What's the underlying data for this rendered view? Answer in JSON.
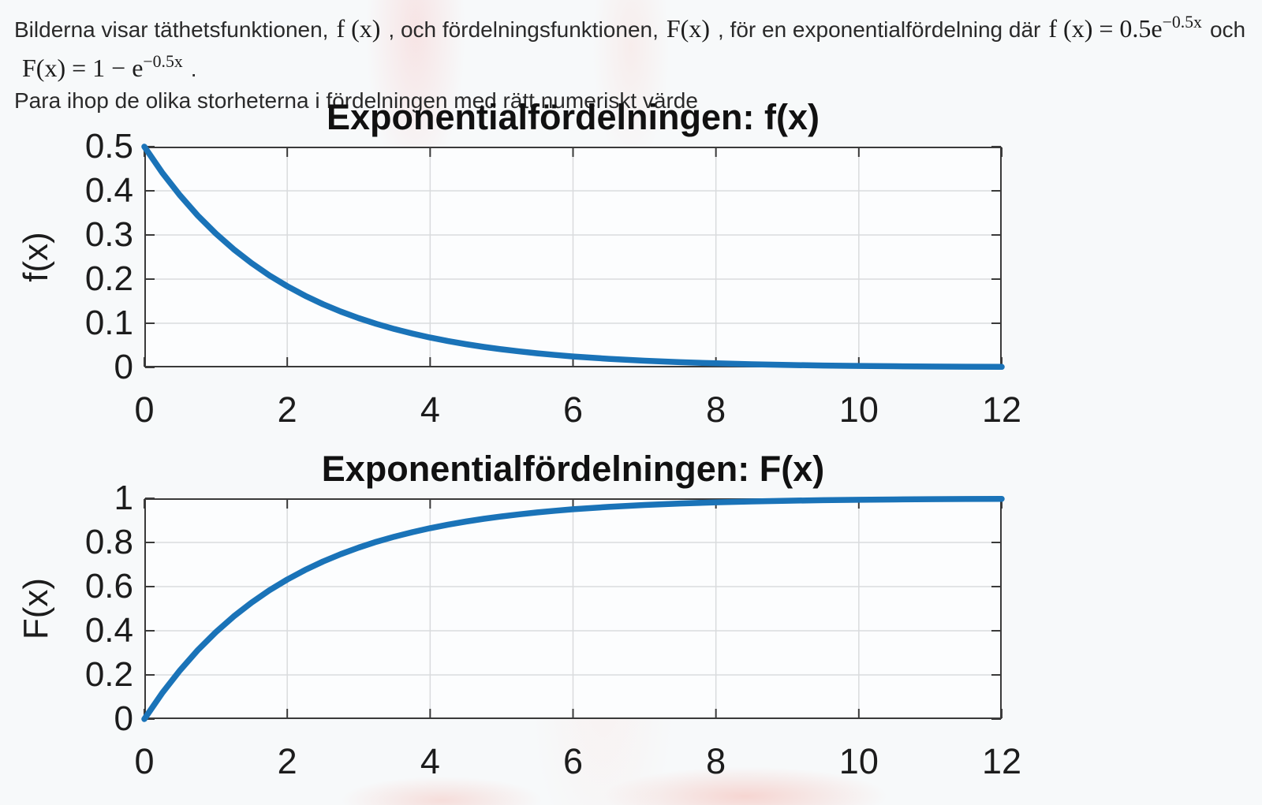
{
  "colors": {
    "line_blue": "#1a73b8",
    "grid": "#d9dbdd",
    "axis": "#3a3a3a",
    "plot_bg": "#fcfdfe",
    "text": "#2a2a2a"
  },
  "intro": {
    "l1a": "Bilderna visar täthetsfunktionen,",
    "l1b": "f (x)",
    "l1c": ", och fördelningsfunktionen,",
    "l1d": "F(x)",
    "l1e": ", för en exponentialfördelning där",
    "l1f": "f (x) = 0.5e",
    "l1g": "−0.5x",
    "l1h": "och",
    "l2a": "F(x) = 1 − e",
    "l2b": "−0.5x",
    "l2c": ".",
    "line3": "Para ihop de olika storheterna i fördelningen med rätt numeriskt värde"
  },
  "chart_data": [
    {
      "type": "line",
      "title": "Exponentialfördelningen: f(x)",
      "xlabel": "",
      "ylabel": "f(x)",
      "xlim": [
        0,
        12
      ],
      "ylim": [
        0,
        0.5
      ],
      "xticks": [
        0,
        2,
        4,
        6,
        8,
        10,
        12
      ],
      "xtick_labels": [
        "0",
        "2",
        "4",
        "6",
        "8",
        "10",
        "12"
      ],
      "yticks": [
        0,
        0.1,
        0.2,
        0.3,
        0.4,
        0.5
      ],
      "ytick_labels": [
        "0",
        "0.1",
        "0.2",
        "0.3",
        "0.4",
        "0.5"
      ],
      "grid": true,
      "legend": "none",
      "line_color": "#1a73b8",
      "x": [
        0,
        0.25,
        0.5,
        0.75,
        1,
        1.25,
        1.5,
        1.75,
        2,
        2.25,
        2.5,
        2.75,
        3,
        3.25,
        3.5,
        3.75,
        4,
        4.25,
        4.5,
        4.75,
        5,
        5.25,
        5.5,
        5.75,
        6,
        6.5,
        7,
        7.5,
        8,
        8.5,
        9,
        9.5,
        10,
        10.5,
        11,
        11.5,
        12
      ],
      "y": [
        0.5,
        0.4412,
        0.3894,
        0.3436,
        0.3033,
        0.2676,
        0.2362,
        0.2084,
        0.1839,
        0.1623,
        0.1433,
        0.1264,
        0.1116,
        0.0985,
        0.0869,
        0.0767,
        0.0677,
        0.0597,
        0.0527,
        0.0465,
        0.041,
        0.0362,
        0.032,
        0.0282,
        0.0249,
        0.0194,
        0.0151,
        0.0118,
        0.0092,
        0.0071,
        0.0056,
        0.0043,
        0.0034,
        0.0026,
        0.002,
        0.0016,
        0.0012
      ]
    },
    {
      "type": "line",
      "title": "Exponentialfördelningen: F(x)",
      "xlabel": "",
      "ylabel": "F(x)",
      "xlim": [
        0,
        12
      ],
      "ylim": [
        0,
        1
      ],
      "xticks": [
        0,
        2,
        4,
        6,
        8,
        10,
        12
      ],
      "xtick_labels": [
        "0",
        "2",
        "4",
        "6",
        "8",
        "10",
        "12"
      ],
      "yticks": [
        0,
        0.2,
        0.4,
        0.6,
        0.8,
        1
      ],
      "ytick_labels": [
        "0",
        "0.2",
        "0.4",
        "0.6",
        "0.8",
        "1"
      ],
      "grid": true,
      "legend": "none",
      "line_color": "#1a73b8",
      "x": [
        0,
        0.25,
        0.5,
        0.75,
        1,
        1.25,
        1.5,
        1.75,
        2,
        2.25,
        2.5,
        2.75,
        3,
        3.25,
        3.5,
        3.75,
        4,
        4.25,
        4.5,
        4.75,
        5,
        5.25,
        5.5,
        5.75,
        6,
        6.5,
        7,
        7.5,
        8,
        8.5,
        9,
        9.5,
        10,
        10.5,
        11,
        11.5,
        12
      ],
      "y": [
        0,
        0.1175,
        0.2212,
        0.3127,
        0.3935,
        0.4647,
        0.5276,
        0.5831,
        0.6321,
        0.6753,
        0.7135,
        0.7472,
        0.7769,
        0.8031,
        0.8262,
        0.8466,
        0.8647,
        0.8806,
        0.8946,
        0.907,
        0.9179,
        0.9276,
        0.9361,
        0.9437,
        0.9502,
        0.9612,
        0.9698,
        0.9763,
        0.9817,
        0.9857,
        0.9889,
        0.9913,
        0.9933,
        0.9948,
        0.9959,
        0.9968,
        0.9975
      ]
    }
  ]
}
